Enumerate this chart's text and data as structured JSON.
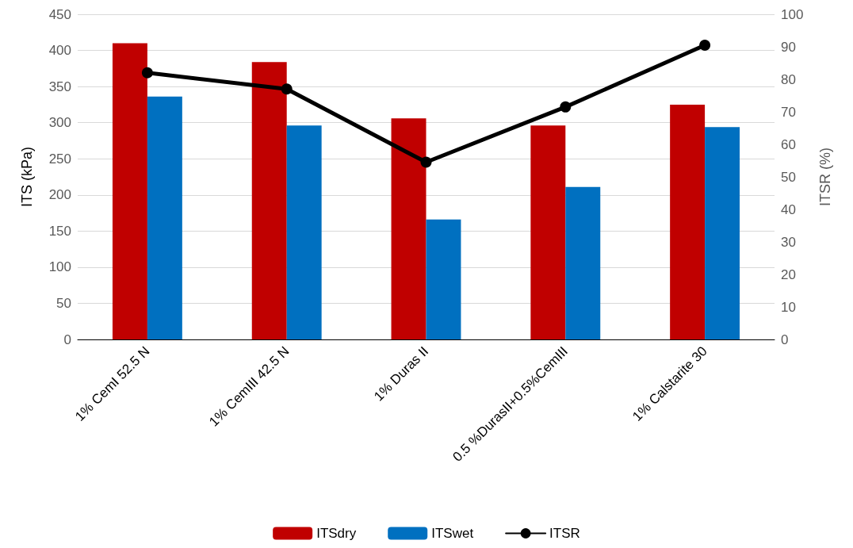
{
  "chart_data": {
    "type": "bar",
    "ylabel": "ITS (kPa)",
    "y2label": "ITSR (%)",
    "categories": [
      "1% CemI 52.5 N",
      "1% CemIII 42.5 N",
      "1% Duras II",
      "0.5 %DurasII+0.5%CemIII",
      "1% Calstarite 30"
    ],
    "series": [
      {
        "name": "ITSdry",
        "color": "#c00000",
        "values": [
          410,
          384,
          306,
          296,
          325
        ]
      },
      {
        "name": "ITSwet",
        "color": "#0070c0",
        "values": [
          336,
          296,
          166,
          211,
          294
        ]
      },
      {
        "name": "ITSR",
        "type": "line",
        "axis": "y2",
        "color": "#000000",
        "values": [
          82,
          77,
          54.5,
          71.5,
          90.5
        ]
      }
    ],
    "ylim": [
      0,
      450
    ],
    "yticks": [
      0,
      50,
      100,
      150,
      200,
      250,
      300,
      350,
      400,
      450
    ],
    "y2lim": [
      0,
      100
    ],
    "y2ticks": [
      0,
      10,
      20,
      30,
      40,
      50,
      60,
      70,
      80,
      90,
      100
    ],
    "grid": "y",
    "legend": "bottom",
    "marker": "circle",
    "line_style": "solid"
  }
}
